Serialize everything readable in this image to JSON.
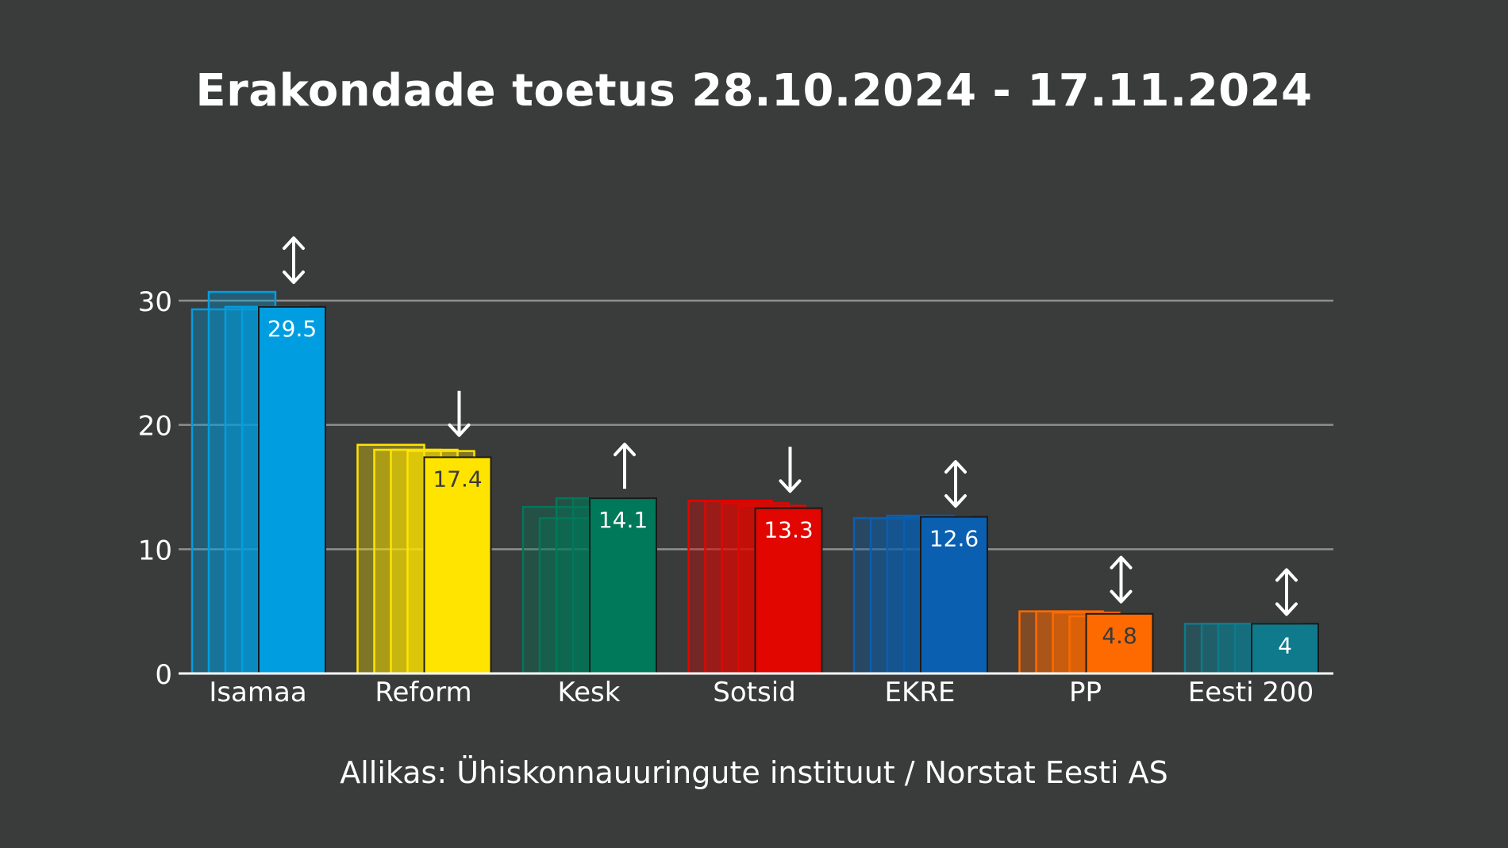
{
  "title": "Erakondade toetus 28.10.2024 - 17.11.2024",
  "source": "Allikas: Ühiskonnauuringute instituut / Norstat Eesti AS",
  "chart_data": {
    "type": "bar",
    "title": "Erakondade toetus 28.10.2024 - 17.11.2024",
    "xlabel": "",
    "ylabel": "",
    "ylim": [
      0,
      30
    ],
    "yticks": [
      0,
      10,
      20,
      30
    ],
    "grid": true,
    "categories": [
      "Isamaa",
      "Reform",
      "Kesk",
      "Sotsid",
      "EKRE",
      "PP",
      "Eesti 200"
    ],
    "series": [
      {
        "values": [
          29.3,
          18.4,
          13.4,
          13.9,
          12.5,
          5.0,
          4.0
        ]
      },
      {
        "values": [
          30.7,
          18.0,
          12.5,
          13.9,
          12.5,
          5.0,
          4.0
        ]
      },
      {
        "values": [
          29.5,
          18.0,
          14.1,
          13.7,
          12.7,
          4.9,
          4.0
        ]
      },
      {
        "values": [
          29.5,
          17.9,
          14.1,
          13.5,
          12.6,
          4.6,
          4.0
        ]
      },
      {
        "values": [
          29.5,
          17.4,
          14.1,
          13.3,
          12.6,
          4.8,
          4.0
        ]
      }
    ],
    "value_labels": [
      "29.5",
      "17.4",
      "14.1",
      "13.3",
      "12.6",
      "4.8",
      "4"
    ],
    "trend_arrows": [
      "both",
      "down",
      "up",
      "down",
      "both",
      "both",
      "both"
    ],
    "colors": [
      "#009ee0",
      "#ffe400",
      "#00785a",
      "#e10600",
      "#0a5fb0",
      "#ff6a00",
      "#0e7a8c"
    ],
    "label_colors": [
      "#ffffff",
      "#3a3a3a",
      "#ffffff",
      "#ffffff",
      "#ffffff",
      "#3a3a3a",
      "#ffffff"
    ]
  }
}
